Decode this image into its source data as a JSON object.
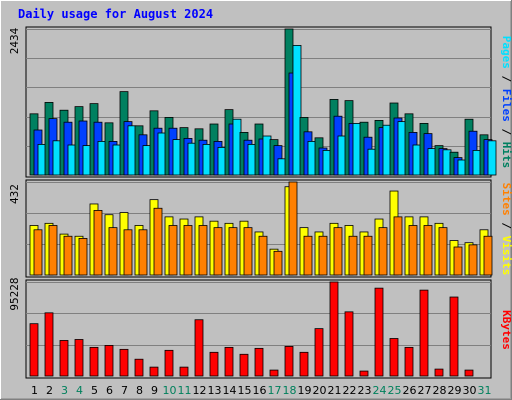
{
  "title": "Daily usage for August 2024",
  "chart_data": [
    {
      "type": "bar",
      "panel": "hits-files-pages",
      "ymax_label": "2434",
      "ylim": [
        0,
        2434
      ],
      "categories": [
        "1",
        "2",
        "3",
        "4",
        "5",
        "6",
        "7",
        "8",
        "9",
        "10",
        "11",
        "12",
        "13",
        "14",
        "15",
        "16",
        "17",
        "18",
        "19",
        "20",
        "21",
        "22",
        "23",
        "24",
        "25",
        "26",
        "27",
        "28",
        "29",
        "30",
        "31"
      ],
      "weekend_days": [
        "3",
        "4",
        "10",
        "11",
        "17",
        "18",
        "24",
        "25",
        "31"
      ],
      "series": [
        {
          "name": "Hits",
          "color": "#008060",
          "values": [
            1020,
            1210,
            1080,
            1140,
            1190,
            870,
            1390,
            820,
            1070,
            960,
            790,
            770,
            850,
            1090,
            710,
            850,
            590,
            2434,
            960,
            620,
            1260,
            1240,
            880,
            910,
            1200,
            1020,
            860,
            490,
            380,
            930,
            670
          ]
        },
        {
          "name": "Files",
          "color": "#0040ff",
          "values": [
            750,
            940,
            880,
            900,
            880,
            560,
            890,
            670,
            780,
            780,
            610,
            580,
            560,
            850,
            580,
            600,
            490,
            1700,
            720,
            450,
            980,
            860,
            630,
            790,
            950,
            710,
            690,
            440,
            290,
            730,
            590
          ]
        },
        {
          "name": "Pages",
          "color": "#00e0ff",
          "values": [
            510,
            570,
            500,
            490,
            560,
            500,
            820,
            490,
            700,
            590,
            530,
            510,
            460,
            930,
            510,
            650,
            270,
            2160,
            560,
            410,
            650,
            860,
            430,
            830,
            890,
            500,
            440,
            420,
            250,
            410,
            570
          ]
        }
      ],
      "legend": [
        "Pages",
        "Files",
        "Hits"
      ],
      "legend_separator": "/"
    },
    {
      "type": "bar",
      "panel": "visits-sites",
      "ymax_label": "432",
      "ylim": [
        0,
        432
      ],
      "categories": [
        "1",
        "2",
        "3",
        "4",
        "5",
        "6",
        "7",
        "8",
        "9",
        "10",
        "11",
        "12",
        "13",
        "14",
        "15",
        "16",
        "17",
        "18",
        "19",
        "20",
        "21",
        "22",
        "23",
        "24",
        "25",
        "26",
        "27",
        "28",
        "29",
        "30",
        "31"
      ],
      "series": [
        {
          "name": "Visits",
          "color": "#ffff00",
          "values": [
            230,
            240,
            190,
            180,
            330,
            280,
            290,
            230,
            350,
            270,
            260,
            270,
            250,
            240,
            250,
            200,
            120,
            410,
            220,
            200,
            240,
            230,
            200,
            260,
            390,
            270,
            270,
            240,
            160,
            150,
            210
          ]
        },
        {
          "name": "Sites",
          "color": "#ff8000",
          "values": [
            210,
            230,
            180,
            170,
            300,
            220,
            210,
            210,
            310,
            230,
            230,
            230,
            220,
            220,
            220,
            180,
            110,
            432,
            180,
            180,
            220,
            180,
            180,
            220,
            270,
            230,
            230,
            220,
            130,
            140,
            180
          ]
        }
      ],
      "legend": [
        "Sites",
        "Visits"
      ],
      "legend_separator": "/"
    },
    {
      "type": "bar",
      "panel": "kbytes",
      "ymax_label": "95228",
      "ylim": [
        0,
        95228
      ],
      "categories": [
        "1",
        "2",
        "3",
        "4",
        "5",
        "6",
        "7",
        "8",
        "9",
        "10",
        "11",
        "12",
        "13",
        "14",
        "15",
        "16",
        "17",
        "18",
        "19",
        "20",
        "21",
        "22",
        "23",
        "24",
        "25",
        "26",
        "27",
        "28",
        "29",
        "30",
        "31"
      ],
      "series": [
        {
          "name": "KBytes",
          "color": "#ff0000",
          "values": [
            53000,
            64000,
            36000,
            37000,
            29000,
            31000,
            27000,
            17000,
            9000,
            26000,
            9000,
            57000,
            24000,
            29000,
            22000,
            28000,
            6000,
            30000,
            24000,
            48000,
            95228,
            65000,
            5000,
            89000,
            38000,
            29000,
            87000,
            7000,
            80000,
            6000,
            0
          ]
        }
      ],
      "legend": [
        "KBytes"
      ]
    }
  ]
}
